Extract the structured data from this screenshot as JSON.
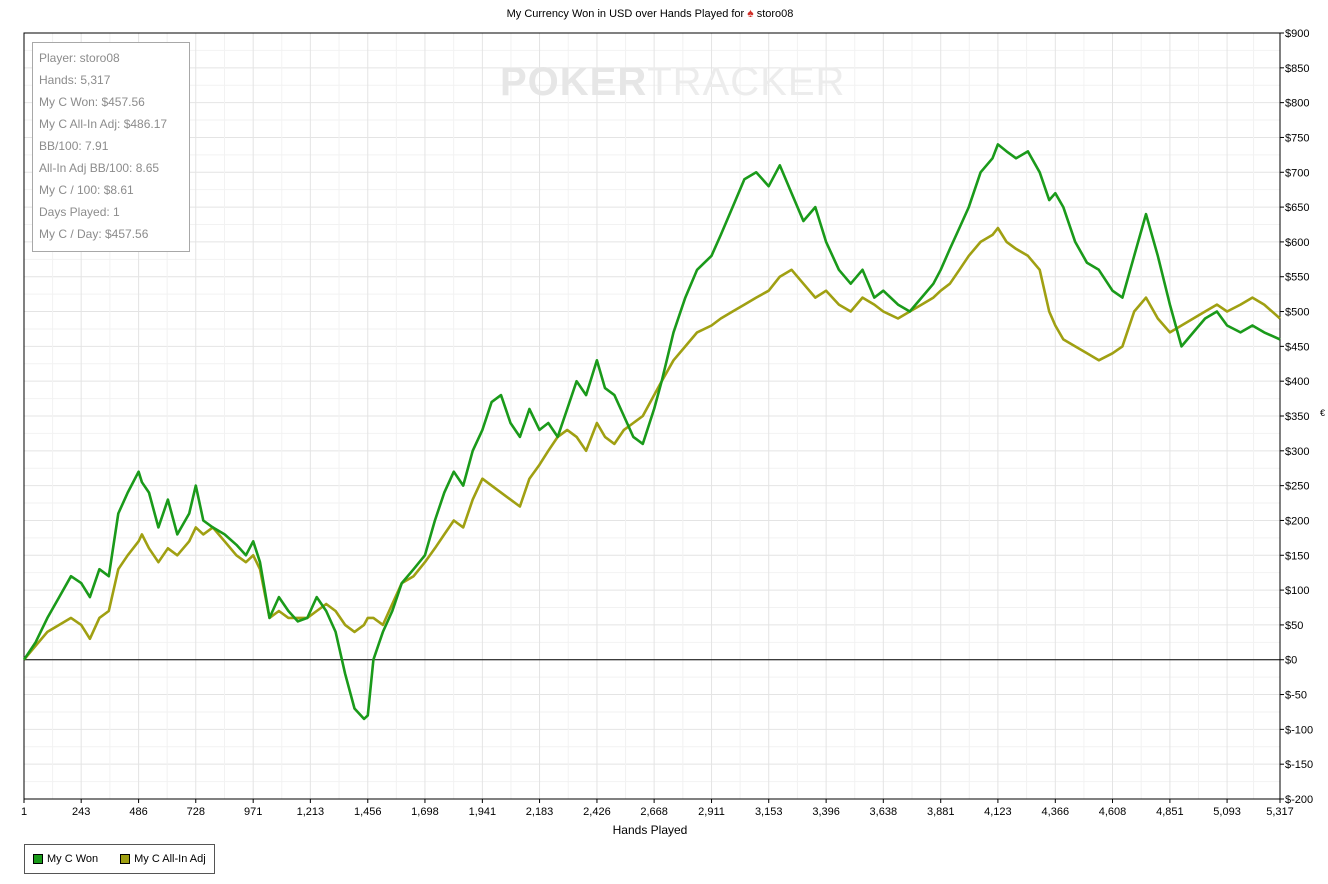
{
  "title": "My Currency Won in USD over Hands Played for",
  "title_player": "storo08",
  "title_icon": "spade-icon",
  "watermark": {
    "bold": "POKER",
    "light": "TRACKER"
  },
  "side_mark": "€",
  "stats": [
    "Player: storo08",
    "Hands: 5,317",
    "My C Won: $457.56",
    "My C All-In Adj: $486.17",
    "BB/100: 7.91",
    "All-In Adj BB/100: 8.65",
    "My C / 100: $8.61",
    "Days Played: 1",
    "My C / Day: $457.56"
  ],
  "legend": [
    {
      "label": "My C Won",
      "color": "#1a9a1a"
    },
    {
      "label": "My C All-In Adj",
      "color": "#a0a012"
    }
  ],
  "chart_data": {
    "type": "line",
    "xlabel": "Hands Played",
    "ylabel": "",
    "xlim": [
      1,
      5317
    ],
    "ylim": [
      -200,
      900
    ],
    "x_ticks": [
      1,
      243,
      486,
      728,
      971,
      1213,
      1456,
      1698,
      1941,
      2183,
      2426,
      2668,
      2911,
      3153,
      3396,
      3638,
      3881,
      4123,
      4366,
      4608,
      4851,
      5093,
      5317
    ],
    "x_tick_labels": [
      "1",
      "243",
      "486",
      "728",
      "971",
      "1,213",
      "1,456",
      "1,698",
      "1,941",
      "2,183",
      "2,426",
      "2,668",
      "2,911",
      "3,153",
      "3,396",
      "3,638",
      "3,881",
      "4,123",
      "4,366",
      "4,608",
      "4,851",
      "5,093",
      "5,317"
    ],
    "y_ticks": [
      900,
      850,
      800,
      750,
      700,
      650,
      600,
      550,
      500,
      450,
      400,
      350,
      300,
      250,
      200,
      150,
      100,
      50,
      0,
      -50,
      -100,
      -150,
      -200
    ],
    "y_tick_labels": [
      "$900",
      "$850",
      "$800",
      "$750",
      "$700",
      "$650",
      "$600",
      "$550",
      "$500",
      "$450",
      "$400",
      "$350",
      "$300",
      "$250",
      "$200",
      "$150",
      "$100",
      "$50",
      "$0",
      "$-50",
      "$-100",
      "$-150",
      "$-200"
    ],
    "grid": true,
    "legend_position": "bottom-left",
    "series": [
      {
        "name": "My C Won",
        "color": "#1a9a1a",
        "x": [
          1,
          50,
          100,
          150,
          200,
          243,
          280,
          320,
          360,
          400,
          440,
          486,
          500,
          530,
          570,
          610,
          650,
          700,
          728,
          760,
          800,
          850,
          900,
          940,
          971,
          1000,
          1040,
          1080,
          1120,
          1160,
          1200,
          1240,
          1280,
          1320,
          1360,
          1400,
          1440,
          1456,
          1480,
          1520,
          1560,
          1600,
          1650,
          1698,
          1740,
          1780,
          1820,
          1860,
          1900,
          1941,
          1980,
          2020,
          2060,
          2100,
          2140,
          2183,
          2220,
          2260,
          2300,
          2340,
          2380,
          2426,
          2460,
          2500,
          2540,
          2580,
          2620,
          2668,
          2700,
          2750,
          2800,
          2850,
          2911,
          2950,
          3000,
          3050,
          3100,
          3153,
          3200,
          3250,
          3300,
          3350,
          3396,
          3450,
          3500,
          3550,
          3600,
          3638,
          3700,
          3750,
          3800,
          3850,
          3881,
          3920,
          3960,
          4000,
          4050,
          4100,
          4123,
          4160,
          4200,
          4250,
          4300,
          4340,
          4366,
          4400,
          4450,
          4500,
          4550,
          4608,
          4650,
          4700,
          4750,
          4800,
          4851,
          4900,
          4950,
          5000,
          5050,
          5093,
          5150,
          5200,
          5250,
          5317
        ],
        "y": [
          0,
          25,
          60,
          90,
          120,
          110,
          90,
          130,
          120,
          210,
          240,
          270,
          255,
          240,
          190,
          230,
          180,
          210,
          250,
          200,
          190,
          180,
          165,
          150,
          170,
          140,
          60,
          90,
          70,
          55,
          60,
          90,
          70,
          40,
          -20,
          -70,
          -85,
          -80,
          0,
          40,
          70,
          110,
          130,
          150,
          200,
          240,
          270,
          250,
          300,
          330,
          370,
          380,
          340,
          320,
          360,
          330,
          340,
          320,
          360,
          400,
          380,
          430,
          390,
          380,
          350,
          320,
          310,
          360,
          400,
          470,
          520,
          560,
          580,
          610,
          650,
          690,
          700,
          680,
          710,
          670,
          630,
          650,
          600,
          560,
          540,
          560,
          520,
          530,
          510,
          500,
          520,
          540,
          560,
          590,
          620,
          650,
          700,
          720,
          740,
          730,
          720,
          730,
          700,
          660,
          670,
          650,
          600,
          570,
          560,
          530,
          520,
          580,
          640,
          580,
          510,
          450,
          470,
          490,
          500,
          480,
          470,
          480,
          470,
          460
        ]
      },
      {
        "name": "My C All-In Adj",
        "color": "#a0a012",
        "x": [
          1,
          50,
          100,
          150,
          200,
          243,
          280,
          320,
          360,
          400,
          440,
          486,
          500,
          530,
          570,
          610,
          650,
          700,
          728,
          760,
          800,
          850,
          900,
          940,
          971,
          1000,
          1040,
          1080,
          1120,
          1160,
          1200,
          1240,
          1280,
          1320,
          1360,
          1400,
          1440,
          1456,
          1480,
          1520,
          1560,
          1600,
          1650,
          1698,
          1740,
          1780,
          1820,
          1860,
          1900,
          1941,
          1980,
          2020,
          2060,
          2100,
          2140,
          2183,
          2220,
          2260,
          2300,
          2340,
          2380,
          2426,
          2460,
          2500,
          2540,
          2580,
          2620,
          2668,
          2700,
          2750,
          2800,
          2850,
          2911,
          2950,
          3000,
          3050,
          3100,
          3153,
          3200,
          3250,
          3300,
          3350,
          3396,
          3450,
          3500,
          3550,
          3600,
          3638,
          3700,
          3750,
          3800,
          3850,
          3881,
          3920,
          3960,
          4000,
          4050,
          4100,
          4123,
          4160,
          4200,
          4250,
          4300,
          4340,
          4366,
          4400,
          4450,
          4500,
          4550,
          4608,
          4650,
          4700,
          4750,
          4800,
          4851,
          4900,
          4950,
          5000,
          5050,
          5093,
          5150,
          5200,
          5250,
          5317
        ],
        "y": [
          0,
          20,
          40,
          50,
          60,
          50,
          30,
          60,
          70,
          130,
          150,
          170,
          180,
          160,
          140,
          160,
          150,
          170,
          190,
          180,
          190,
          170,
          150,
          140,
          150,
          130,
          60,
          70,
          60,
          60,
          60,
          70,
          80,
          70,
          50,
          40,
          50,
          60,
          60,
          50,
          80,
          110,
          120,
          140,
          160,
          180,
          200,
          190,
          230,
          260,
          250,
          240,
          230,
          220,
          260,
          280,
          300,
          320,
          330,
          320,
          300,
          340,
          320,
          310,
          330,
          340,
          350,
          380,
          400,
          430,
          450,
          470,
          480,
          490,
          500,
          510,
          520,
          530,
          550,
          560,
          540,
          520,
          530,
          510,
          500,
          520,
          510,
          500,
          490,
          500,
          510,
          520,
          530,
          540,
          560,
          580,
          600,
          610,
          620,
          600,
          590,
          580,
          560,
          500,
          480,
          460,
          450,
          440,
          430,
          440,
          450,
          500,
          520,
          490,
          470,
          480,
          490,
          500,
          510,
          500,
          510,
          520,
          510,
          490
        ]
      }
    ]
  }
}
